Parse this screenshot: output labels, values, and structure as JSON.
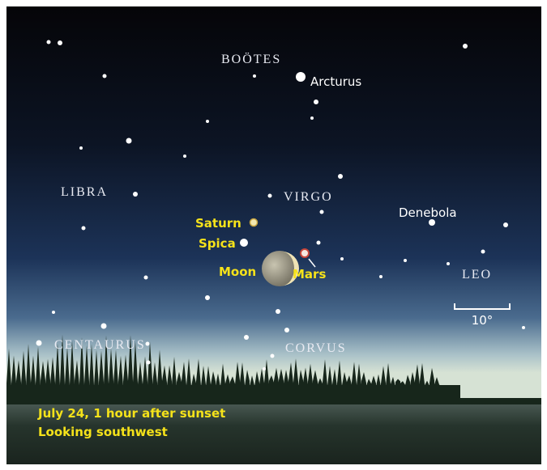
{
  "constellations": [
    "BOÖTES",
    "LIBRA",
    "VIRGO",
    "LEO",
    "CENTAURUS",
    "CORVUS"
  ],
  "objects": {
    "arcturus": "Arcturus",
    "denebola": "Denebola",
    "saturn": "Saturn",
    "spica": "Spica",
    "moon": "Moon",
    "mars": "Mars"
  },
  "scale": "10°",
  "caption": [
    "July 24, 1 hour after sunset",
    "Looking southwest"
  ]
}
